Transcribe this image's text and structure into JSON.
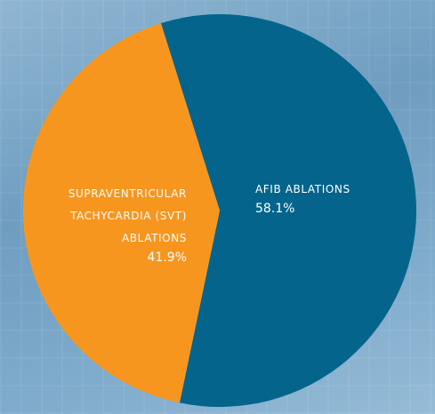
{
  "chart_data": {
    "type": "pie",
    "categories": [
      "AFIB ABLATIONS",
      "SUPRAVENTRICULAR TACHYCARDIA (SVT) ABLATIONS"
    ],
    "values": [
      58.1,
      41.9
    ],
    "value_labels": [
      "58.1%",
      "41.9%"
    ],
    "colors": [
      "#04648c",
      "#f7961f"
    ]
  }
}
